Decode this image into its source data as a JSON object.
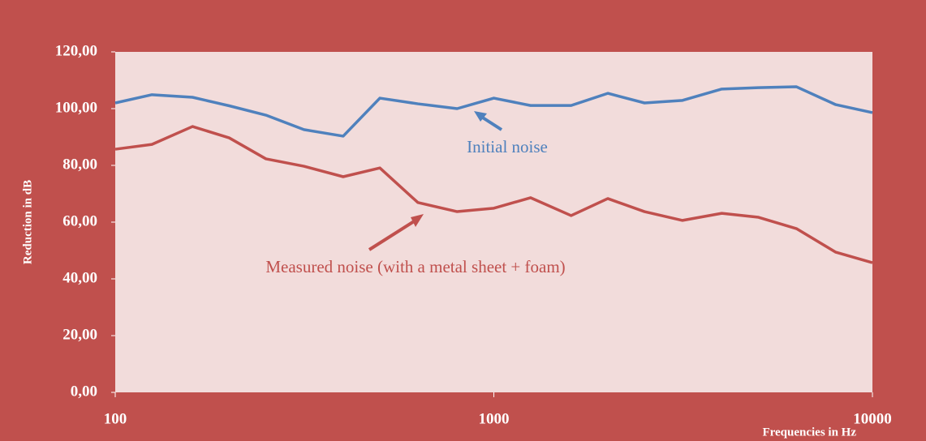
{
  "chart_data": {
    "type": "line",
    "xlabel": "Frequencies in Hz",
    "ylabel": "Reduction in dB",
    "x": [
      100,
      125,
      160,
      200,
      250,
      315,
      400,
      500,
      630,
      800,
      1000,
      1250,
      1600,
      2000,
      2500,
      3150,
      4000,
      5000,
      6300,
      8000,
      10000
    ],
    "series": [
      {
        "name": "Initial noise",
        "color": "#4f81bd",
        "values": [
          102,
          104.9,
          104,
          101,
          97.7,
          92.6,
          90.3,
          103.7,
          101.7,
          100,
          103.7,
          101.1,
          101.1,
          105.4,
          102,
          102.9,
          106.9,
          107.4,
          107.7,
          101.4,
          98.6
        ]
      },
      {
        "name": "Measured noise (with a metal sheet + foam)",
        "color": "#c0504d",
        "values": [
          85.7,
          87.4,
          93.7,
          89.7,
          82.3,
          79.7,
          76,
          79.1,
          66.9,
          63.7,
          64.9,
          68.6,
          62.3,
          68.3,
          63.7,
          60.6,
          63.1,
          61.7,
          57.7,
          49.4,
          45.7
        ]
      }
    ],
    "xscale": "log",
    "xlim": [
      100,
      10000
    ],
    "xticks": [
      100,
      1000,
      10000
    ],
    "ylim": [
      0,
      120
    ],
    "yticks": [
      {
        "value": 0,
        "label": "0,00"
      },
      {
        "value": 20,
        "label": "20,00"
      },
      {
        "value": 40,
        "label": "40,00"
      },
      {
        "value": 60,
        "label": "60,00"
      },
      {
        "value": 80,
        "label": "80,00"
      },
      {
        "value": 100,
        "label": "100,00"
      },
      {
        "value": 120,
        "label": "120,00"
      }
    ]
  }
}
